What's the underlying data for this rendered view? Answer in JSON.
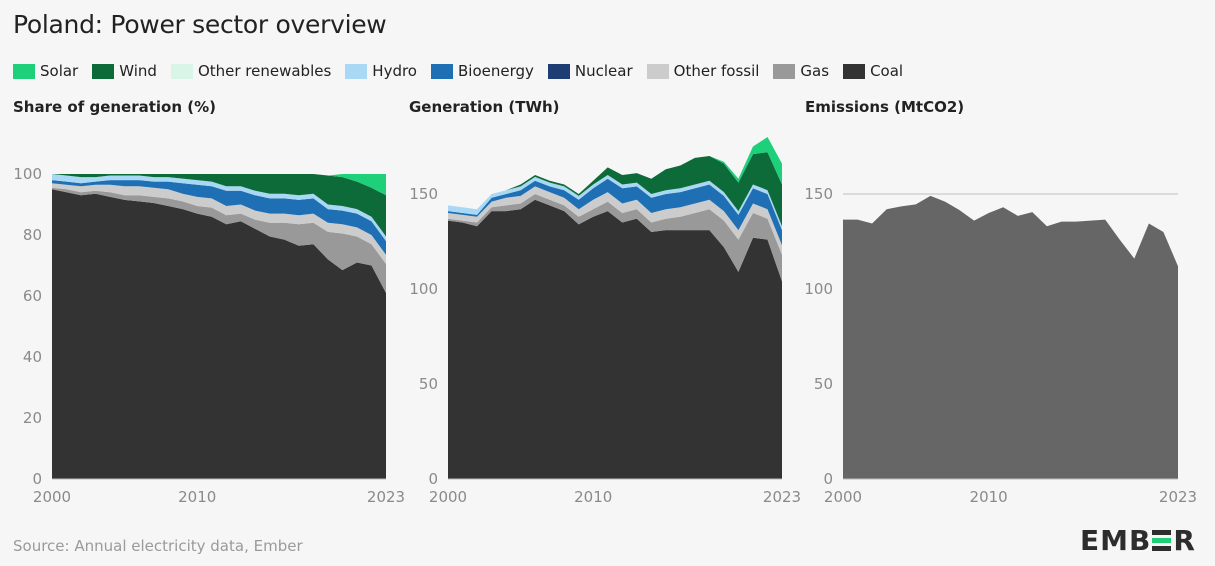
{
  "title": "Poland: Power sector overview",
  "legend": [
    {
      "label": "Solar",
      "color": "#1ed07a"
    },
    {
      "label": "Wind",
      "color": "#0d6b3a"
    },
    {
      "label": "Other renewables",
      "color": "#d8f5e7"
    },
    {
      "label": "Hydro",
      "color": "#a9d8f4"
    },
    {
      "label": "Bioenergy",
      "color": "#1e6fb3"
    },
    {
      "label": "Nuclear",
      "color": "#1d3d73"
    },
    {
      "label": "Other fossil",
      "color": "#cccccc"
    },
    {
      "label": "Gas",
      "color": "#999999"
    },
    {
      "label": "Coal",
      "color": "#333333"
    }
  ],
  "panels": {
    "share_title": "Share of generation (%)",
    "generation_title": "Generation (TWh)",
    "emissions_title": "Emissions (MtCO2)"
  },
  "source": "Source: Annual electricity data, Ember",
  "logo": {
    "before": "EMB",
    "after": "R"
  },
  "chart_data": [
    {
      "type": "area",
      "title": "Share of generation (%)",
      "stacked": true,
      "x": [
        2000,
        2001,
        2002,
        2003,
        2004,
        2005,
        2006,
        2007,
        2008,
        2009,
        2010,
        2011,
        2012,
        2013,
        2014,
        2015,
        2016,
        2017,
        2018,
        2019,
        2020,
        2021,
        2022,
        2023
      ],
      "xticks": [
        "2000",
        "2010",
        "2023"
      ],
      "ylim": [
        0,
        100
      ],
      "yticks": [
        "0",
        "20",
        "40",
        "60",
        "80",
        "100"
      ],
      "series": [
        {
          "name": "Coal",
          "values": [
            95,
            94,
            93,
            93.5,
            92.5,
            91.5,
            91,
            90.5,
            89.5,
            88.5,
            87,
            86,
            83.5,
            84.5,
            82,
            79.5,
            78.5,
            76.5,
            77,
            72,
            68.5,
            71,
            70,
            61
          ]
        },
        {
          "name": "Gas",
          "values": [
            0.5,
            1,
            1,
            1,
            1.5,
            1.5,
            2,
            2,
            2.5,
            2.5,
            2.5,
            3,
            3,
            2.5,
            3,
            4.5,
            5.5,
            7,
            7,
            9,
            12,
            8.5,
            7,
            9.5
          ]
        },
        {
          "name": "Other fossil",
          "values": [
            1.5,
            1.5,
            2,
            2,
            2.5,
            3,
            3,
            3,
            3,
            2.5,
            3,
            3,
            3,
            3,
            3,
            3,
            3,
            3,
            3,
            3,
            3,
            3,
            3,
            3
          ]
        },
        {
          "name": "Nuclear",
          "values": [
            0,
            0,
            0,
            0,
            0,
            0,
            0,
            0,
            0,
            0,
            0,
            0,
            0,
            0,
            0,
            0,
            0,
            0,
            0,
            0,
            0,
            0,
            0,
            0
          ]
        },
        {
          "name": "Bioenergy",
          "values": [
            1,
            1,
            1,
            1,
            1.5,
            2,
            2,
            2,
            2.5,
            3.5,
            4,
            4,
            5,
            4.5,
            5,
            5,
            5,
            5,
            5,
            4.5,
            4.5,
            4.5,
            4.5,
            4.5
          ]
        },
        {
          "name": "Hydro",
          "values": [
            2,
            2,
            2,
            1.5,
            1.5,
            1.5,
            1.5,
            1.5,
            1.5,
            1.5,
            1.5,
            1.5,
            1.5,
            1.5,
            1.5,
            1.5,
            1.5,
            1.5,
            1.5,
            1.5,
            1.5,
            1.5,
            1.5,
            1.5
          ]
        },
        {
          "name": "Other renewables",
          "values": [
            0,
            0,
            0,
            0,
            0,
            0,
            0,
            0,
            0,
            0,
            0,
            0,
            0,
            0,
            0,
            0,
            0,
            0,
            0,
            0,
            0,
            0,
            0,
            0
          ]
        },
        {
          "name": "Wind",
          "values": [
            0,
            0.5,
            1,
            1,
            0.5,
            0.5,
            0.5,
            1,
            1,
            1.5,
            2,
            2.5,
            4,
            4,
            5.5,
            6.5,
            6.5,
            7,
            6.5,
            9.5,
            9.5,
            9,
            9.5,
            13.5
          ]
        },
        {
          "name": "Solar",
          "values": [
            0,
            0,
            0,
            0,
            0,
            0,
            0,
            0,
            0,
            0,
            0,
            0,
            0,
            0,
            0,
            0,
            0,
            0,
            0,
            0,
            1,
            2.5,
            4.5,
            7
          ]
        }
      ]
    },
    {
      "type": "area",
      "title": "Generation (TWh)",
      "stacked": true,
      "x": [
        2000,
        2001,
        2002,
        2003,
        2004,
        2005,
        2006,
        2007,
        2008,
        2009,
        2010,
        2011,
        2012,
        2013,
        2014,
        2015,
        2016,
        2017,
        2018,
        2019,
        2020,
        2021,
        2022,
        2023
      ],
      "xticks": [
        "2000",
        "2010",
        "2023"
      ],
      "ylim": [
        0,
        180
      ],
      "yticks": [
        "0",
        "50",
        "100",
        "150"
      ],
      "series": [
        {
          "name": "Coal",
          "values": [
            136,
            135,
            133,
            141,
            141,
            142,
            147,
            144,
            141,
            134,
            138,
            141,
            135,
            137,
            130,
            131,
            131,
            131,
            131,
            122,
            109,
            127,
            126,
            104
          ]
        },
        {
          "name": "Gas",
          "values": [
            1,
            1,
            2,
            2,
            3,
            3,
            3,
            3,
            3,
            4,
            4,
            5,
            5,
            5,
            5,
            6,
            7,
            9,
            11,
            14,
            17,
            13,
            11,
            14
          ]
        },
        {
          "name": "Other fossil",
          "values": [
            3,
            3,
            3,
            3,
            4,
            4,
            4,
            4,
            4,
            4,
            5,
            5,
            5,
            5,
            5,
            5,
            5,
            5,
            5,
            5,
            5,
            5,
            5,
            5
          ]
        },
        {
          "name": "Nuclear",
          "values": [
            0,
            0,
            0,
            0,
            0,
            0,
            0,
            0,
            0,
            0,
            0,
            0,
            0,
            0,
            0,
            0,
            0,
            0,
            0,
            0,
            0,
            0,
            0,
            0
          ]
        },
        {
          "name": "Bioenergy",
          "values": [
            1,
            1,
            1,
            2,
            2,
            3,
            3,
            3,
            4,
            5,
            6,
            7,
            8,
            7,
            8,
            8,
            8,
            8,
            8,
            8,
            8,
            8,
            8,
            8
          ]
        },
        {
          "name": "Hydro",
          "values": [
            3,
            3,
            3,
            2,
            2,
            2,
            2,
            2,
            2,
            2,
            2,
            2,
            2,
            2,
            2,
            2,
            2,
            2,
            2,
            2,
            2,
            2,
            2,
            2
          ]
        },
        {
          "name": "Other renewables",
          "values": [
            0,
            0,
            0,
            0,
            0,
            0,
            0,
            0,
            0,
            0,
            0,
            0,
            0,
            0,
            0,
            0,
            0,
            0,
            0,
            0,
            0,
            0,
            0,
            0
          ]
        },
        {
          "name": "Wind",
          "values": [
            0,
            0,
            0,
            0,
            0,
            1,
            1,
            1,
            1,
            1,
            2,
            4,
            5,
            5,
            8,
            11,
            12,
            14,
            13,
            15,
            15,
            16,
            20,
            22
          ]
        },
        {
          "name": "Solar",
          "values": [
            0,
            0,
            0,
            0,
            0,
            0,
            0,
            0,
            0,
            0,
            0,
            0,
            0,
            0,
            0,
            0,
            0,
            0,
            0,
            1,
            2,
            4,
            8,
            11
          ]
        }
      ]
    },
    {
      "type": "area",
      "title": "Emissions (MtCO2)",
      "x": [
        2000,
        2001,
        2002,
        2003,
        2004,
        2005,
        2006,
        2007,
        2008,
        2009,
        2010,
        2011,
        2012,
        2013,
        2014,
        2015,
        2016,
        2017,
        2018,
        2019,
        2020,
        2021,
        2022,
        2023
      ],
      "xticks": [
        "2000",
        "2010",
        "2023"
      ],
      "ylim": [
        0,
        150
      ],
      "yticks": [
        "0",
        "50",
        "100",
        "150"
      ],
      "gridline": 150,
      "color": "#666666",
      "values": [
        136.5,
        136.5,
        134.5,
        142,
        143.5,
        144.5,
        149,
        146,
        141.5,
        136,
        140,
        143,
        138.5,
        140.5,
        133,
        135.5,
        135.5,
        136,
        136.5,
        126,
        116,
        134.5,
        130,
        112
      ]
    }
  ]
}
